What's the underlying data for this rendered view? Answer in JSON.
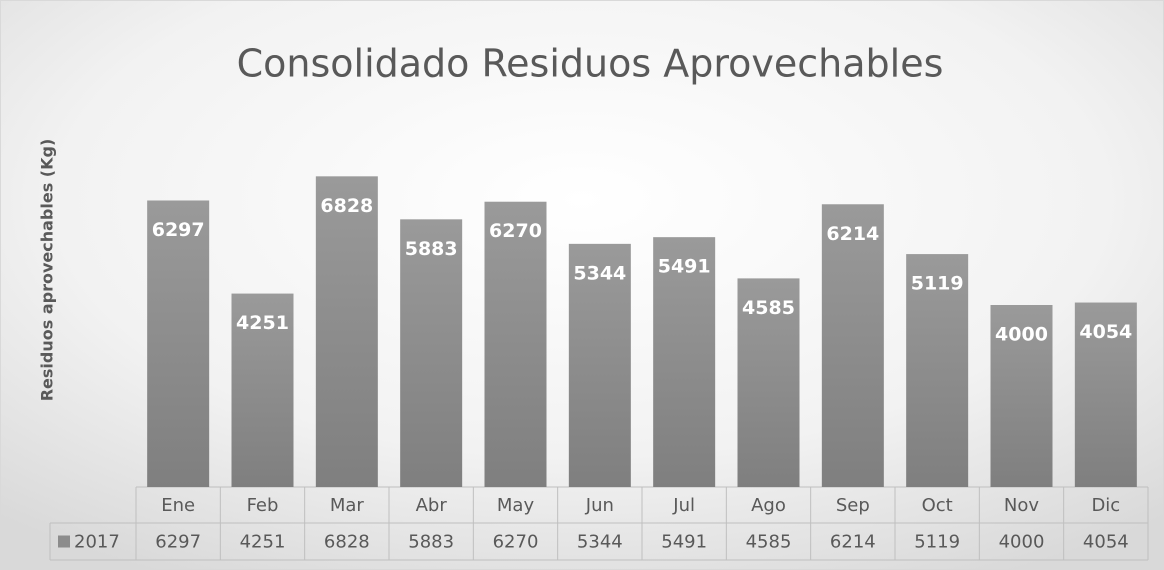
{
  "chart_data": {
    "type": "bar",
    "title": "Consolidado Residuos Aprovechables",
    "y_label": "Residuos aprovechables (Kg)",
    "categories": [
      "Ene",
      "Feb",
      "Mar",
      "Abr",
      "May",
      "Jun",
      "Jul",
      "Ago",
      "Sep",
      "Oct",
      "Nov",
      "Dic"
    ],
    "series": [
      {
        "name": "2017",
        "color": "#8c8c8c",
        "values": [
          6297,
          4251,
          6828,
          5883,
          6270,
          5344,
          5491,
          4585,
          6214,
          5119,
          4000,
          4054
        ]
      }
    ],
    "ylim": [
      0,
      8000
    ]
  }
}
